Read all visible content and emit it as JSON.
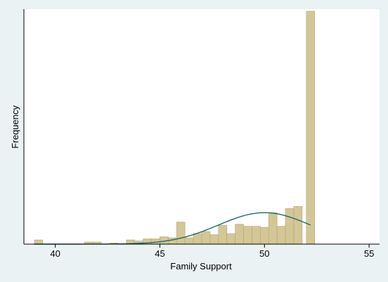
{
  "chart_data": {
    "type": "bar",
    "subtype": "histogram-with-normal-density",
    "title": "",
    "xlabel": "Family Support",
    "ylabel": "Frequency",
    "xlim": [
      38.5,
      55.5
    ],
    "ylim": [
      0,
      112
    ],
    "x_ticks": [
      40,
      45,
      50,
      55
    ],
    "y_ticks_shown": false,
    "grid": false,
    "legend": "none",
    "bar_color": "#d3c797",
    "bar_edge_color": "#b5a56e",
    "curve_color": "#1f6b6b",
    "plot_background": "#ffffff",
    "outer_background": "#eaf2f3",
    "bins": [
      {
        "x0": 39.0,
        "x1": 39.4,
        "y": 2
      },
      {
        "x0": 41.4,
        "x1": 41.8,
        "y": 1
      },
      {
        "x0": 41.8,
        "x1": 42.2,
        "y": 1
      },
      {
        "x0": 42.6,
        "x1": 43.0,
        "y": 0.5
      },
      {
        "x0": 43.4,
        "x1": 43.8,
        "y": 2
      },
      {
        "x0": 43.8,
        "x1": 44.2,
        "y": 1.5
      },
      {
        "x0": 44.2,
        "x1": 44.6,
        "y": 2.5
      },
      {
        "x0": 44.6,
        "x1": 45.0,
        "y": 2.5
      },
      {
        "x0": 45.0,
        "x1": 45.4,
        "y": 3.5
      },
      {
        "x0": 45.4,
        "x1": 45.8,
        "y": 3
      },
      {
        "x0": 45.8,
        "x1": 46.2,
        "y": 10.5
      },
      {
        "x0": 46.2,
        "x1": 46.6,
        "y": 3
      },
      {
        "x0": 46.6,
        "x1": 47.0,
        "y": 5
      },
      {
        "x0": 47.0,
        "x1": 47.4,
        "y": 6
      },
      {
        "x0": 47.4,
        "x1": 47.8,
        "y": 4.5
      },
      {
        "x0": 47.8,
        "x1": 48.2,
        "y": 9
      },
      {
        "x0": 48.2,
        "x1": 48.6,
        "y": 5
      },
      {
        "x0": 48.6,
        "x1": 49.0,
        "y": 9.5
      },
      {
        "x0": 49.0,
        "x1": 49.4,
        "y": 8.5
      },
      {
        "x0": 49.4,
        "x1": 49.8,
        "y": 8.5
      },
      {
        "x0": 49.8,
        "x1": 50.2,
        "y": 8
      },
      {
        "x0": 50.2,
        "x1": 50.6,
        "y": 15
      },
      {
        "x0": 50.6,
        "x1": 51.0,
        "y": 8.5
      },
      {
        "x0": 51.0,
        "x1": 51.4,
        "y": 17
      },
      {
        "x0": 51.4,
        "x1": 51.8,
        "y": 18
      },
      {
        "x0": 52.0,
        "x1": 52.4,
        "y": 111
      }
    ],
    "density_curve": {
      "type": "normal",
      "mean": 50.0,
      "sd": 2.2,
      "peak": 15,
      "x_range": [
        39.0,
        52.2
      ]
    }
  }
}
